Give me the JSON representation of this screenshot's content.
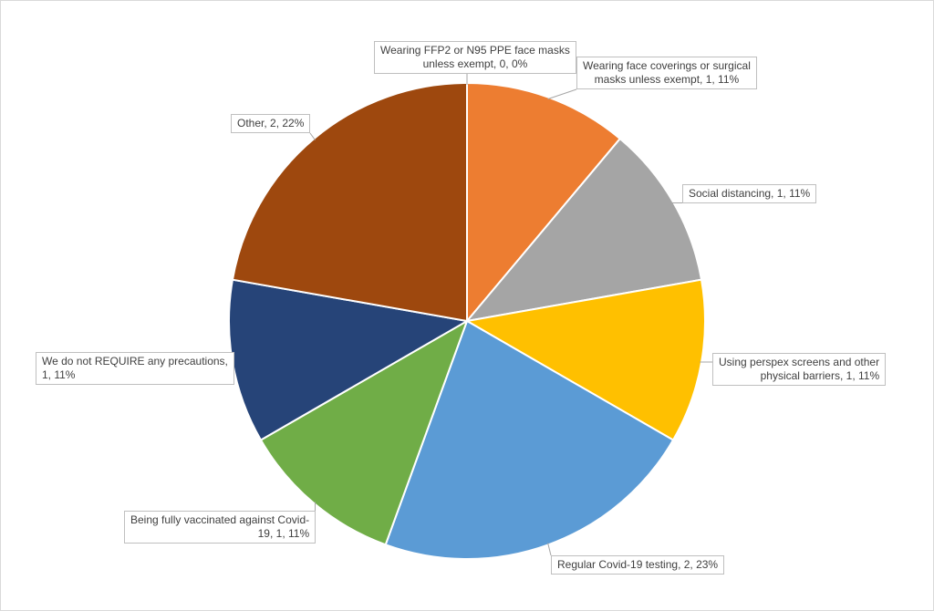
{
  "chart_data": {
    "type": "pie",
    "title": "",
    "slices": [
      {
        "name": "Wearing FFP2 or N95 PPE face masks unless exempt",
        "value": 0,
        "percent": "0%",
        "color": "#4472C4",
        "label_lines": [
          "Wearing FFP2 or N95 PPE face masks",
          "unless exempt, 0, 0%"
        ]
      },
      {
        "name": "Wearing face coverings or surgical masks unless exempt",
        "value": 1,
        "percent": "11%",
        "color": "#ED7D31",
        "label_lines": [
          "Wearing face coverings or surgical",
          "masks unless exempt, 1, 11%"
        ]
      },
      {
        "name": "Social distancing",
        "value": 1,
        "percent": "11%",
        "color": "#A5A5A5",
        "label_lines": [
          "Social distancing, 1, 11%"
        ]
      },
      {
        "name": "Using perspex screens and other physical barriers",
        "value": 1,
        "percent": "11%",
        "color": "#FFC000",
        "label_lines": [
          "Using perspex screens and other",
          "physical barriers, 1, 11%"
        ]
      },
      {
        "name": "Regular Covid-19 testing",
        "value": 2,
        "percent": "23%",
        "color": "#5B9BD5",
        "label_lines": [
          "Regular Covid-19 testing, 2, 23%"
        ]
      },
      {
        "name": "Being fully vaccinated against Covid-19",
        "value": 1,
        "percent": "11%",
        "color": "#70AD47",
        "label_lines": [
          "Being fully vaccinated against Covid-",
          "19, 1, 11%"
        ]
      },
      {
        "name": "We do not REQUIRE any precautions",
        "value": 1,
        "percent": "11%",
        "color": "#264478",
        "label_lines": [
          "We do not REQUIRE any precautions,",
          "1, 11%"
        ]
      },
      {
        "name": "Other",
        "value": 2,
        "percent": "22%",
        "color": "#9E480E",
        "label_lines": [
          "Other, 2, 22%"
        ]
      }
    ]
  }
}
